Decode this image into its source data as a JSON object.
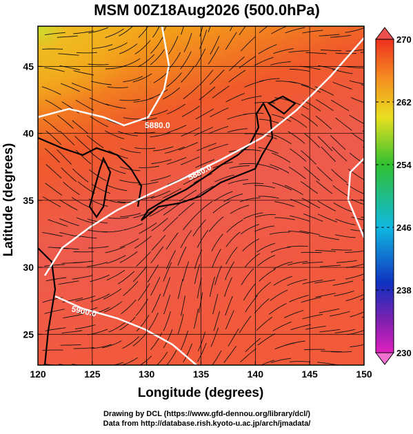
{
  "title": "MSM 00Z18Aug2026 (500.0hPa)",
  "x_axis": {
    "label": "Longitude (degrees)",
    "lim": [
      120,
      150
    ],
    "ticks": [
      120,
      125,
      130,
      135,
      140,
      145,
      150
    ]
  },
  "y_axis": {
    "label": "Latitude  (degrees)",
    "lim": [
      22.7,
      48
    ],
    "ticks": [
      25,
      30,
      35,
      40,
      45
    ]
  },
  "colorbar": {
    "lim": [
      230,
      270
    ],
    "ticks": [
      230,
      238,
      246,
      254,
      262,
      270
    ]
  },
  "contour_labels": [
    "5880.0",
    "5880.0",
    "5900.0"
  ],
  "credits": [
    "Drawing by DCL (https://www.gfd-dennou.org/library/dcl/)",
    "Data from http://database.rish.kyoto-u.ac.jp/arch/jmadata/"
  ]
}
